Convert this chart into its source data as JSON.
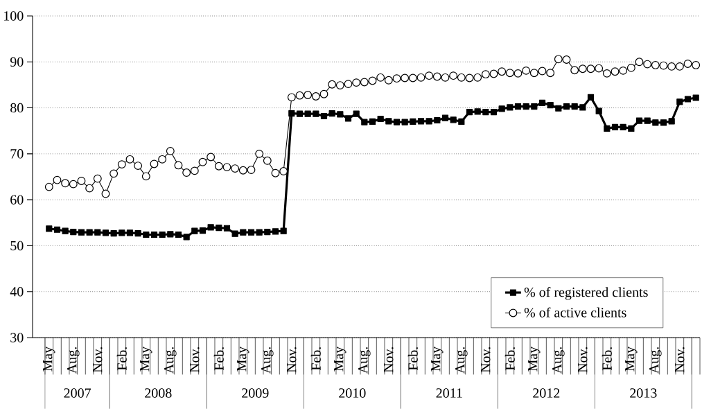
{
  "chart_data": {
    "type": "line",
    "categories": [
      "May",
      null,
      null,
      "Aug.",
      null,
      null,
      "Nov.",
      null,
      null,
      "Feb.",
      null,
      null,
      "May",
      null,
      null,
      "Aug.",
      null,
      null,
      "Nov.",
      null,
      null,
      "Feb.",
      null,
      null,
      "May",
      null,
      null,
      "Aug.",
      null,
      null,
      "Nov.",
      null,
      null,
      "Feb.",
      null,
      null,
      "May",
      null,
      null,
      "Aug.",
      null,
      null,
      "Nov.",
      null,
      null,
      "Feb.",
      null,
      null,
      "May",
      null,
      null,
      "Aug.",
      null,
      null,
      "Nov.",
      null,
      null,
      "Feb.",
      null,
      null,
      "May",
      null,
      null,
      "Aug.",
      null,
      null,
      "Nov.",
      null,
      null,
      "Feb.",
      null,
      null,
      "May",
      null,
      null,
      "Aug.",
      null,
      null,
      "Nov.",
      null,
      null
    ],
    "series": [
      {
        "name": "% of registered clients",
        "color": "#000000",
        "marker": "square",
        "values": [
          53.7,
          53.5,
          53.2,
          53.0,
          52.9,
          52.9,
          52.9,
          52.8,
          52.7,
          52.8,
          52.8,
          52.7,
          52.4,
          52.4,
          52.4,
          52.5,
          52.4,
          51.9,
          53.2,
          53.3,
          54.0,
          53.9,
          53.8,
          52.6,
          52.9,
          52.9,
          52.9,
          53.0,
          53.1,
          53.2,
          78.8,
          78.7,
          78.7,
          78.7,
          78.2,
          78.8,
          78.6,
          77.7,
          78.7,
          76.9,
          77.0,
          77.6,
          77.1,
          76.9,
          76.9,
          77.0,
          77.1,
          77.1,
          77.3,
          77.8,
          77.4,
          77.0,
          79.1,
          79.2,
          79.1,
          79.1,
          79.8,
          80.1,
          80.3,
          80.3,
          80.3,
          81.1,
          80.6,
          79.9,
          80.3,
          80.3,
          80.1,
          82.3,
          79.3,
          75.5,
          75.8,
          75.8,
          75.5,
          77.2,
          77.2,
          76.8,
          76.8,
          77.1,
          81.3,
          81.9,
          82.2
        ]
      },
      {
        "name": "% of active clients",
        "color": "#000000",
        "marker": "circle",
        "values": [
          62.8,
          64.3,
          63.6,
          63.4,
          64.1,
          62.5,
          64.6,
          61.3,
          65.7,
          67.7,
          68.8,
          67.4,
          65.1,
          67.8,
          68.8,
          70.6,
          67.5,
          65.9,
          66.3,
          68.2,
          69.3,
          67.3,
          67.1,
          66.8,
          66.4,
          66.5,
          70.0,
          68.5,
          65.8,
          66.2,
          82.3,
          82.7,
          82.8,
          82.5,
          83.0,
          85.1,
          84.9,
          85.2,
          85.5,
          85.6,
          85.9,
          86.6,
          86.0,
          86.4,
          86.5,
          86.5,
          86.6,
          87.0,
          86.8,
          86.6,
          87.0,
          86.6,
          86.5,
          86.6,
          87.3,
          87.4,
          87.9,
          87.6,
          87.5,
          88.1,
          87.6,
          88.0,
          87.6,
          90.6,
          90.5,
          88.2,
          88.5,
          88.5,
          88.6,
          87.5,
          87.9,
          88.1,
          88.7,
          90.0,
          89.5,
          89.3,
          89.2,
          89.0,
          89.0,
          89.6,
          89.3
        ]
      }
    ],
    "ylim": [
      30,
      100
    ],
    "yticks": [
      30,
      40,
      50,
      60,
      70,
      80,
      90,
      100
    ],
    "grid": "y",
    "legend": "bottom right",
    "annotations": [
      "2007",
      "2008",
      "2009",
      "2010",
      "2011",
      "2012",
      "2013"
    ]
  }
}
